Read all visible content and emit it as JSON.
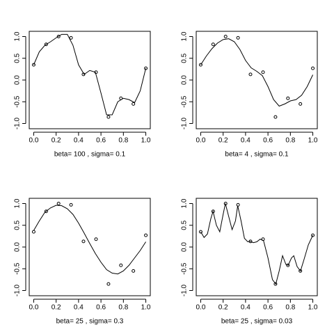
{
  "chart_data": [
    {
      "type": "scatter_line",
      "xlabel": "beta= 100 , sigma= 0.1",
      "points": {
        "x": [
          0,
          0.111,
          0.222,
          0.333,
          0.444,
          0.556,
          0.667,
          0.778,
          0.889,
          1.0
        ],
        "y": [
          0.35,
          0.82,
          1.0,
          0.97,
          0.13,
          0.18,
          -0.85,
          -0.42,
          -0.55,
          0.27
        ]
      },
      "curve": {
        "x": [
          0,
          0.05,
          0.1,
          0.15,
          0.2,
          0.25,
          0.3,
          0.35,
          0.4,
          0.45,
          0.5,
          0.55,
          0.6,
          0.65,
          0.7,
          0.75,
          0.8,
          0.85,
          0.9,
          0.95,
          1.0
        ],
        "y": [
          0.35,
          0.65,
          0.8,
          0.88,
          0.97,
          1.05,
          1.05,
          0.8,
          0.35,
          0.13,
          0.22,
          0.18,
          -0.3,
          -0.8,
          -0.8,
          -0.5,
          -0.42,
          -0.45,
          -0.52,
          -0.25,
          0.27
        ]
      },
      "xlim": [
        -0.04,
        1.04
      ],
      "ylim": [
        -1.12,
        1.12
      ],
      "xticks": [
        {
          "value": 0,
          "label": "0.0"
        },
        0.2,
        0.4,
        0.6,
        0.8,
        {
          "value": 1,
          "label": "1.0"
        }
      ],
      "yticks": [
        {
          "value": -1,
          "label": "-1.0"
        },
        -0.5,
        {
          "value": 0,
          "label": "0.0"
        },
        0.5,
        {
          "value": 1,
          "label": "1.0"
        }
      ]
    },
    {
      "type": "scatter_line",
      "xlabel": "beta= 4 , sigma= 0.1",
      "points": {
        "x": [
          0,
          0.111,
          0.222,
          0.333,
          0.444,
          0.556,
          0.667,
          0.778,
          0.889,
          1.0
        ],
        "y": [
          0.35,
          0.82,
          1.0,
          0.97,
          0.13,
          0.18,
          -0.85,
          -0.42,
          -0.55,
          0.27
        ]
      },
      "curve": {
        "x": [
          0,
          0.05,
          0.1,
          0.15,
          0.2,
          0.25,
          0.3,
          0.35,
          0.4,
          0.45,
          0.5,
          0.55,
          0.6,
          0.65,
          0.7,
          0.75,
          0.8,
          0.85,
          0.9,
          0.95,
          1.0
        ],
        "y": [
          0.35,
          0.55,
          0.72,
          0.85,
          0.93,
          0.95,
          0.88,
          0.7,
          0.45,
          0.28,
          0.2,
          0.1,
          -0.15,
          -0.45,
          -0.6,
          -0.55,
          -0.48,
          -0.45,
          -0.35,
          -0.15,
          0.12
        ]
      },
      "xlim": [
        -0.04,
        1.04
      ],
      "ylim": [
        -1.12,
        1.12
      ],
      "xticks": [
        {
          "value": 0,
          "label": "0.0"
        },
        0.2,
        0.4,
        0.6,
        0.8,
        {
          "value": 1,
          "label": "1.0"
        }
      ],
      "yticks": [
        {
          "value": -1,
          "label": "-1.0"
        },
        -0.5,
        {
          "value": 0,
          "label": "0.0"
        },
        0.5,
        {
          "value": 1,
          "label": "1.0"
        }
      ]
    },
    {
      "type": "scatter_line",
      "xlabel": "beta= 25 , sigma= 0.3",
      "points": {
        "x": [
          0,
          0.111,
          0.222,
          0.333,
          0.444,
          0.556,
          0.667,
          0.778,
          0.889,
          1.0
        ],
        "y": [
          0.35,
          0.82,
          1.0,
          0.97,
          0.13,
          0.18,
          -0.85,
          -0.42,
          -0.55,
          0.27
        ]
      },
      "curve": {
        "x": [
          0,
          0.05,
          0.1,
          0.15,
          0.2,
          0.25,
          0.3,
          0.35,
          0.4,
          0.45,
          0.5,
          0.55,
          0.6,
          0.65,
          0.7,
          0.75,
          0.8,
          0.85,
          0.9,
          0.95,
          1.0
        ],
        "y": [
          0.38,
          0.6,
          0.8,
          0.9,
          0.96,
          0.95,
          0.88,
          0.75,
          0.55,
          0.32,
          0.08,
          -0.15,
          -0.35,
          -0.52,
          -0.6,
          -0.62,
          -0.55,
          -0.42,
          -0.25,
          -0.08,
          0.12
        ]
      },
      "xlim": [
        -0.04,
        1.04
      ],
      "ylim": [
        -1.12,
        1.12
      ],
      "xticks": [
        {
          "value": 0,
          "label": "0.0"
        },
        0.2,
        0.4,
        0.6,
        0.8,
        {
          "value": 1,
          "label": "1.0"
        }
      ],
      "yticks": [
        {
          "value": -1,
          "label": "-1.0"
        },
        -0.5,
        {
          "value": 0,
          "label": "0.0"
        },
        0.5,
        {
          "value": 1,
          "label": "1.0"
        }
      ]
    },
    {
      "type": "scatter_line",
      "xlabel": "beta= 25 , sigma= 0.03",
      "points": {
        "x": [
          0,
          0.111,
          0.222,
          0.333,
          0.444,
          0.556,
          0.667,
          0.778,
          0.889,
          1.0
        ],
        "y": [
          0.35,
          0.82,
          1.0,
          0.97,
          0.13,
          0.18,
          -0.85,
          -0.42,
          -0.55,
          0.27
        ]
      },
      "curve": {
        "x": [
          0,
          0.03,
          0.06,
          0.09,
          0.11,
          0.14,
          0.17,
          0.2,
          0.22,
          0.25,
          0.28,
          0.31,
          0.33,
          0.36,
          0.39,
          0.42,
          0.44,
          0.47,
          0.5,
          0.53,
          0.56,
          0.6,
          0.64,
          0.67,
          0.7,
          0.73,
          0.76,
          0.78,
          0.81,
          0.83,
          0.86,
          0.89,
          0.92,
          0.96,
          1.0
        ],
        "y": [
          0.35,
          0.22,
          0.3,
          0.65,
          0.82,
          0.5,
          0.35,
          0.75,
          1.0,
          0.7,
          0.4,
          0.6,
          0.95,
          0.6,
          0.2,
          0.12,
          0.13,
          0.1,
          0.12,
          0.18,
          0.15,
          -0.25,
          -0.75,
          -0.85,
          -0.55,
          -0.2,
          -0.4,
          -0.42,
          -0.25,
          -0.2,
          -0.45,
          -0.55,
          -0.3,
          0.05,
          0.27
        ]
      },
      "xlim": [
        -0.04,
        1.04
      ],
      "ylim": [
        -1.12,
        1.12
      ],
      "xticks": [
        {
          "value": 0,
          "label": "0.0"
        },
        0.2,
        0.4,
        0.6,
        0.8,
        {
          "value": 1,
          "label": "1.0"
        }
      ],
      "yticks": [
        {
          "value": -1,
          "label": "-1.0"
        },
        -0.5,
        {
          "value": 0,
          "label": "0.0"
        },
        0.5,
        {
          "value": 1,
          "label": "1.0"
        }
      ]
    }
  ]
}
